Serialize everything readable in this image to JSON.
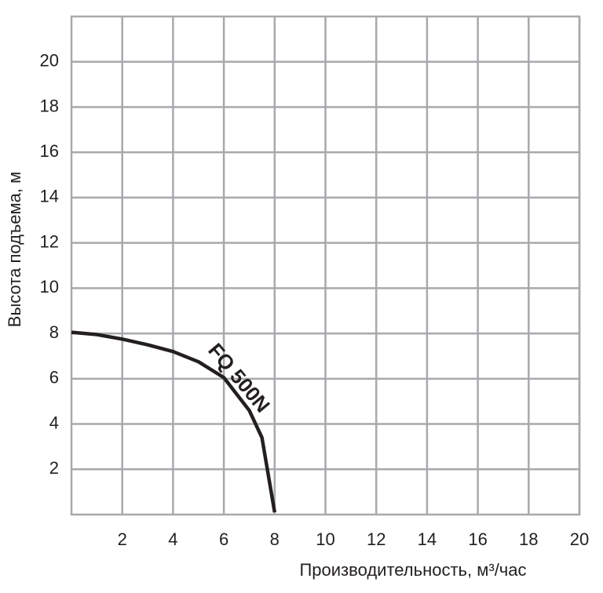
{
  "chart_data": {
    "type": "line",
    "x_label": "Производительность, м³/час",
    "y_label": "Высота подъема, м",
    "annotation": "FQ 500N",
    "xlim": [
      0,
      20
    ],
    "ylim": [
      0,
      22
    ],
    "xticks": [
      2,
      4,
      6,
      8,
      10,
      12,
      14,
      16,
      18,
      20
    ],
    "yticks": [
      2,
      4,
      6,
      8,
      10,
      12,
      14,
      16,
      18,
      20
    ],
    "grid": true,
    "series": [
      {
        "name": "FQ 500N",
        "color": "#231f20",
        "x": [
          0,
          1,
          2,
          3,
          4,
          5,
          6,
          7,
          7.5,
          8
        ],
        "values": [
          8.05,
          7.95,
          7.75,
          7.5,
          7.2,
          6.75,
          6.05,
          4.6,
          3.4,
          0.1
        ]
      }
    ]
  }
}
